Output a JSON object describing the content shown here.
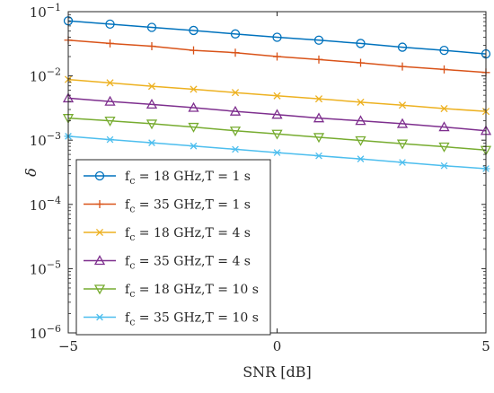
{
  "chart_data": {
    "type": "line",
    "xlabel": "SNR [dB]",
    "ylabel": "δ",
    "x": [
      -5,
      -4,
      -3,
      -2,
      -1,
      0,
      1,
      2,
      3,
      4,
      5
    ],
    "xlim": [
      -5,
      5
    ],
    "ylim": [
      1e-06,
      0.1
    ],
    "yscale": "log",
    "x_ticks": [
      -5,
      0,
      5
    ],
    "y_ticks": [
      {
        "value": 0.1,
        "base": "10",
        "exp": "−1"
      },
      {
        "value": 0.01,
        "base": "10",
        "exp": "−2"
      },
      {
        "value": 0.001,
        "base": "10",
        "exp": "−3"
      },
      {
        "value": 0.0001,
        "base": "10",
        "exp": "−4"
      },
      {
        "value": 1e-05,
        "base": "10",
        "exp": "−5"
      },
      {
        "value": 1e-06,
        "base": "10",
        "exp": "−6"
      }
    ],
    "grid": false,
    "legend_position": "lower-left",
    "series": [
      {
        "name": "f_c = 18 GHz,T = 1 s",
        "sym": "f",
        "sub": "c",
        "rest": " = 18 GHz,T = 1 s",
        "color": "#0072BD",
        "marker": "circle",
        "values": [
          0.072,
          0.064,
          0.057,
          0.051,
          0.045,
          0.04,
          0.036,
          0.032,
          0.028,
          0.025,
          0.022
        ]
      },
      {
        "name": "f_c = 35 GHz,T = 1 s",
        "sym": "f",
        "sub": "c",
        "rest": " = 35 GHz,T = 1 s",
        "color": "#D95319",
        "marker": "plus",
        "values": [
          0.036,
          0.032,
          0.029,
          0.025,
          0.023,
          0.02,
          0.018,
          0.016,
          0.014,
          0.0126,
          0.0113
        ]
      },
      {
        "name": "f_c = 18 GHz,T = 4 s",
        "sym": "f",
        "sub": "c",
        "rest": " = 18 GHz,T = 4 s",
        "color": "#EDB120",
        "marker": "x",
        "values": [
          0.0088,
          0.0078,
          0.0069,
          0.0062,
          0.0055,
          0.0049,
          0.0044,
          0.0039,
          0.0035,
          0.0031,
          0.0028
        ]
      },
      {
        "name": "f_c = 35 GHz,T = 4 s",
        "sym": "f",
        "sub": "c",
        "rest": " = 35 GHz,T = 4 s",
        "color": "#7E2F8E",
        "marker": "triangle-up",
        "values": [
          0.0045,
          0.004,
          0.0036,
          0.0032,
          0.0028,
          0.0025,
          0.0022,
          0.002,
          0.0018,
          0.0016,
          0.0014
        ]
      },
      {
        "name": "f_c = 18 GHz,T = 10 s",
        "sym": "f",
        "sub": "c",
        "rest": " = 18 GHz,T = 10 s",
        "color": "#77AC30",
        "marker": "triangle-down",
        "values": [
          0.0022,
          0.002,
          0.0018,
          0.0016,
          0.0014,
          0.00125,
          0.00111,
          0.00099,
          0.00088,
          0.00079,
          0.0007
        ]
      },
      {
        "name": "f_c = 35 GHz,T = 10 s",
        "sym": "f",
        "sub": "c",
        "rest": " = 35 GHz,T = 10 s",
        "color": "#4DBEEE",
        "marker": "asterisk",
        "values": [
          0.00115,
          0.00102,
          0.00091,
          0.00081,
          0.00072,
          0.00064,
          0.00057,
          0.00051,
          0.00045,
          0.0004,
          0.00036
        ]
      }
    ]
  }
}
